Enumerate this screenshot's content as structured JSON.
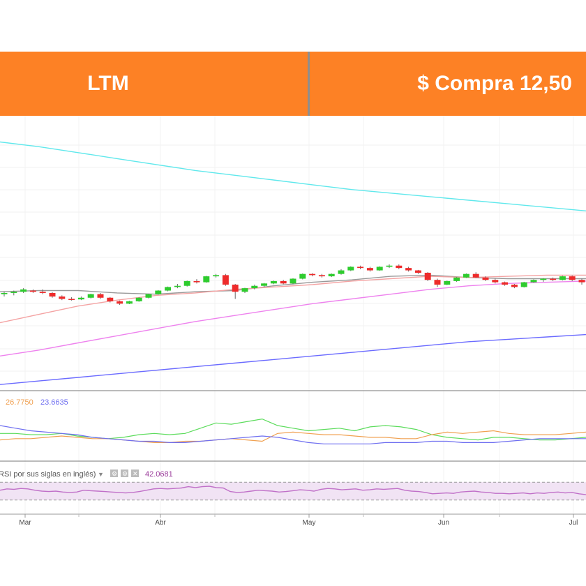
{
  "banner": {
    "ticker": "LTM",
    "price_label": "$ Compra 12,50",
    "background": "#fd8125"
  },
  "chart_data": [
    {
      "panel": "price",
      "type": "candlestick",
      "title": "",
      "xlabel": "",
      "ylabel": "",
      "x_ticks": [
        "Mar",
        "Abr",
        "May",
        "Jun",
        "Jul"
      ],
      "grid": true,
      "colors": {
        "up": "#2ecc2e",
        "down": "#ee2b2b"
      },
      "candles": [
        {
          "o": 60.0,
          "h": 61.0,
          "l": 59.0,
          "c": 60.5
        },
        {
          "o": 60.5,
          "h": 61.5,
          "l": 59.5,
          "c": 61.0
        },
        {
          "o": 61.0,
          "h": 62.5,
          "l": 60.5,
          "c": 62.0
        },
        {
          "o": 61.5,
          "h": 62.0,
          "l": 60.5,
          "c": 61.0
        },
        {
          "o": 61.0,
          "h": 62.0,
          "l": 60.0,
          "c": 60.5
        },
        {
          "o": 60.5,
          "h": 60.8,
          "l": 58.5,
          "c": 59.0
        },
        {
          "o": 59.0,
          "h": 59.5,
          "l": 57.5,
          "c": 58.0
        },
        {
          "o": 58.0,
          "h": 58.7,
          "l": 57.3,
          "c": 57.8
        },
        {
          "o": 57.8,
          "h": 59.0,
          "l": 57.5,
          "c": 58.5
        },
        {
          "o": 58.5,
          "h": 60.2,
          "l": 58.2,
          "c": 60.0
        },
        {
          "o": 60.0,
          "h": 60.5,
          "l": 58.0,
          "c": 58.5
        },
        {
          "o": 58.5,
          "h": 58.8,
          "l": 56.5,
          "c": 57.0
        },
        {
          "o": 57.0,
          "h": 57.3,
          "l": 55.5,
          "c": 56.0
        },
        {
          "o": 56.0,
          "h": 57.2,
          "l": 55.8,
          "c": 57.0
        },
        {
          "o": 57.0,
          "h": 58.7,
          "l": 56.8,
          "c": 58.5
        },
        {
          "o": 58.5,
          "h": 60.2,
          "l": 58.2,
          "c": 60.0
        },
        {
          "o": 60.0,
          "h": 61.7,
          "l": 59.8,
          "c": 61.5
        },
        {
          "o": 61.5,
          "h": 63.2,
          "l": 61.2,
          "c": 63.0
        },
        {
          "o": 63.0,
          "h": 64.3,
          "l": 62.5,
          "c": 63.5
        },
        {
          "o": 63.5,
          "h": 65.7,
          "l": 63.2,
          "c": 65.5
        },
        {
          "o": 65.5,
          "h": 66.3,
          "l": 64.5,
          "c": 65.0
        },
        {
          "o": 65.0,
          "h": 67.7,
          "l": 64.8,
          "c": 67.5
        },
        {
          "o": 67.5,
          "h": 68.5,
          "l": 67.0,
          "c": 68.0
        },
        {
          "o": 68.0,
          "h": 68.5,
          "l": 63.5,
          "c": 64.0
        },
        {
          "o": 64.0,
          "h": 64.3,
          "l": 58.0,
          "c": 61.0
        },
        {
          "o": 61.0,
          "h": 62.7,
          "l": 60.5,
          "c": 62.5
        },
        {
          "o": 62.5,
          "h": 64.0,
          "l": 62.0,
          "c": 63.5
        },
        {
          "o": 63.5,
          "h": 64.7,
          "l": 63.0,
          "c": 64.5
        },
        {
          "o": 64.5,
          "h": 65.7,
          "l": 64.2,
          "c": 65.5
        },
        {
          "o": 65.5,
          "h": 66.0,
          "l": 64.2,
          "c": 64.5
        },
        {
          "o": 64.5,
          "h": 66.7,
          "l": 64.2,
          "c": 66.5
        },
        {
          "o": 66.5,
          "h": 68.7,
          "l": 66.2,
          "c": 68.5
        },
        {
          "o": 68.5,
          "h": 68.8,
          "l": 67.5,
          "c": 68.0
        },
        {
          "o": 68.0,
          "h": 68.5,
          "l": 67.0,
          "c": 67.5
        },
        {
          "o": 67.5,
          "h": 68.7,
          "l": 67.2,
          "c": 68.5
        },
        {
          "o": 68.5,
          "h": 70.5,
          "l": 68.2,
          "c": 70.0
        },
        {
          "o": 70.0,
          "h": 71.7,
          "l": 69.7,
          "c": 71.5
        },
        {
          "o": 71.5,
          "h": 72.0,
          "l": 70.5,
          "c": 71.0
        },
        {
          "o": 71.0,
          "h": 71.5,
          "l": 69.5,
          "c": 70.0
        },
        {
          "o": 70.0,
          "h": 71.7,
          "l": 69.8,
          "c": 71.5
        },
        {
          "o": 71.5,
          "h": 72.5,
          "l": 71.0,
          "c": 72.0
        },
        {
          "o": 72.0,
          "h": 72.5,
          "l": 70.5,
          "c": 71.0
        },
        {
          "o": 71.0,
          "h": 71.5,
          "l": 69.5,
          "c": 70.0
        },
        {
          "o": 70.0,
          "h": 70.2,
          "l": 68.5,
          "c": 69.0
        },
        {
          "o": 69.0,
          "h": 69.3,
          "l": 65.5,
          "c": 66.0
        },
        {
          "o": 66.0,
          "h": 66.5,
          "l": 63.0,
          "c": 64.0
        },
        {
          "o": 64.0,
          "h": 65.7,
          "l": 63.8,
          "c": 65.5
        },
        {
          "o": 65.5,
          "h": 67.2,
          "l": 65.2,
          "c": 67.0
        },
        {
          "o": 67.0,
          "h": 68.7,
          "l": 66.8,
          "c": 68.5
        },
        {
          "o": 68.5,
          "h": 69.2,
          "l": 66.8,
          "c": 67.0
        },
        {
          "o": 67.0,
          "h": 67.5,
          "l": 65.5,
          "c": 66.0
        },
        {
          "o": 66.0,
          "h": 66.5,
          "l": 64.5,
          "c": 65.0
        },
        {
          "o": 65.0,
          "h": 65.3,
          "l": 63.5,
          "c": 64.0
        },
        {
          "o": 64.0,
          "h": 64.3,
          "l": 62.5,
          "c": 63.0
        },
        {
          "o": 63.0,
          "h": 65.2,
          "l": 62.8,
          "c": 65.0
        },
        {
          "o": 65.0,
          "h": 66.2,
          "l": 64.8,
          "c": 66.0
        },
        {
          "o": 66.0,
          "h": 66.7,
          "l": 65.2,
          "c": 66.5
        },
        {
          "o": 66.5,
          "h": 67.0,
          "l": 65.5,
          "c": 66.0
        },
        {
          "o": 66.0,
          "h": 67.7,
          "l": 65.8,
          "c": 67.5
        },
        {
          "o": 67.5,
          "h": 67.8,
          "l": 65.5,
          "c": 66.0
        },
        {
          "o": 66.0,
          "h": 66.5,
          "l": 64.0,
          "c": 65.0
        }
      ],
      "moving_averages": [
        {
          "color": "#999999",
          "values": [
            61.0,
            61.5,
            61.5,
            60.5,
            60.0,
            61.0,
            61.5,
            63.5,
            65.0,
            66.0,
            67.5,
            68.0,
            67.0,
            66.5,
            66.5,
            66.5
          ]
        },
        {
          "color": "#f4a3a3",
          "values": [
            48.0,
            51.5,
            55.0,
            57.5,
            59.5,
            60.5,
            62.0,
            63.0,
            64.0,
            65.5,
            66.5,
            67.5,
            67.0,
            67.5,
            68.0,
            68.0
          ]
        },
        {
          "color": "#ee82ee",
          "values": [
            34.0,
            36.5,
            39.5,
            42.5,
            45.5,
            48.5,
            51.0,
            53.5,
            56.0,
            58.0,
            60.0,
            62.0,
            63.5,
            64.5,
            65.0,
            65.5
          ]
        },
        {
          "color": "#6b6bff",
          "values": [
            22.0,
            23.5,
            25.0,
            26.5,
            28.0,
            29.5,
            31.0,
            32.5,
            34.0,
            35.5,
            37.0,
            38.5,
            40.0,
            41.0,
            42.0,
            43.0
          ]
        },
        {
          "color": "#60e8ec",
          "values": [
            124.0,
            122.0,
            119.5,
            117.0,
            114.5,
            112.0,
            110.0,
            108.0,
            106.0,
            104.0,
            102.5,
            101.0,
            99.5,
            98.0,
            96.5,
            95.0
          ]
        }
      ]
    },
    {
      "panel": "directional",
      "type": "line",
      "legend_values": [
        "26.7750",
        "23.6635"
      ],
      "series": [
        {
          "color": "#5cdc5c",
          "values": [
            22,
            22,
            21,
            21,
            22,
            20,
            19,
            18,
            19,
            21,
            22,
            21,
            22,
            26,
            30,
            29,
            31,
            33,
            28,
            26,
            24,
            25,
            26,
            24,
            27,
            28,
            27,
            25,
            21,
            19,
            18,
            17,
            19,
            19,
            18,
            17,
            17,
            18,
            19
          ]
        },
        {
          "color": "#f0a050",
          "values": [
            17,
            18,
            18,
            19,
            20,
            19,
            18,
            18,
            17,
            16,
            15,
            15,
            16,
            16,
            17,
            18,
            17,
            16,
            22,
            23,
            22,
            21,
            21,
            20,
            19,
            19,
            18,
            18,
            21,
            23,
            22,
            23,
            24,
            22,
            21,
            21,
            21,
            22,
            23
          ]
        },
        {
          "color": "#6e6ef0",
          "values": [
            28,
            26,
            24,
            23,
            22,
            21,
            19,
            18,
            17,
            16,
            16,
            15,
            15,
            16,
            17,
            18,
            19,
            20,
            19,
            17,
            15,
            14,
            14,
            14,
            14,
            15,
            15,
            15,
            16,
            16,
            15,
            15,
            15,
            16,
            17,
            18,
            18,
            18,
            18
          ]
        }
      ]
    },
    {
      "panel": "rsi",
      "type": "line",
      "label": "RSI por sus siglas en inglés)",
      "legend_value": "42.0681",
      "color": "#c070c8",
      "band": [
        30,
        70
      ],
      "values": [
        52,
        55,
        54,
        56,
        55,
        52,
        50,
        49,
        50,
        48,
        47,
        48,
        52,
        51,
        50,
        49,
        48,
        47,
        46,
        47,
        49,
        52,
        55,
        56,
        55,
        56,
        57,
        60,
        58,
        60,
        61,
        58,
        57,
        49,
        47,
        48,
        50,
        52,
        51,
        50,
        48,
        49,
        51,
        53,
        52,
        50,
        54,
        56,
        55,
        53,
        54,
        55,
        52,
        53,
        55,
        54,
        55,
        56,
        52,
        50,
        49,
        47,
        44,
        45,
        46,
        45,
        48,
        49,
        50,
        48,
        47,
        45,
        45,
        44,
        45,
        46,
        44,
        46,
        45,
        47,
        48,
        46,
        47,
        44,
        42
      ]
    }
  ]
}
